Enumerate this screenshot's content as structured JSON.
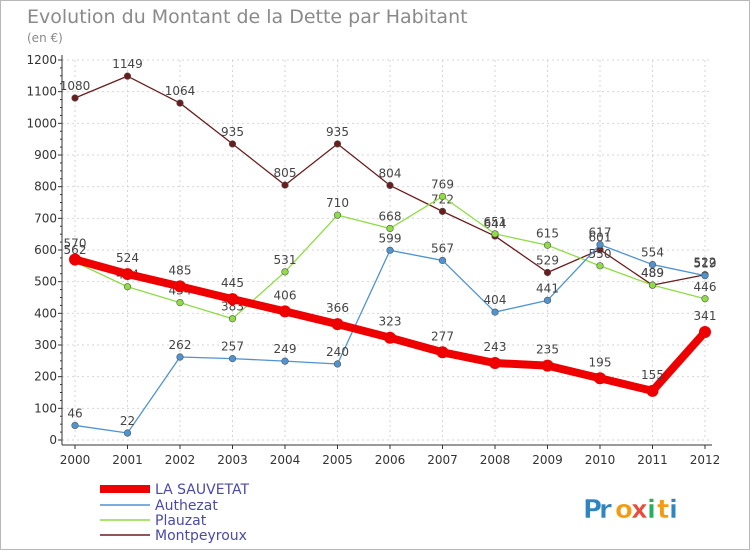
{
  "chart_data": {
    "type": "line",
    "title": "Evolution du Montant de la Dette par Habitant",
    "subtitle": "(en €)",
    "x": [
      "2000",
      "2001",
      "2002",
      "2003",
      "2004",
      "2005",
      "2006",
      "2007",
      "2008",
      "2009",
      "2010",
      "2011",
      "2012"
    ],
    "yticks": [
      0,
      100,
      200,
      300,
      400,
      500,
      600,
      700,
      800,
      900,
      1000,
      1100,
      1200
    ],
    "ylim": [
      0,
      1200
    ],
    "grid": true,
    "legend_position": "bottom-left",
    "series": [
      {
        "name": "Montpeyroux",
        "color": "#6b1d1d",
        "values": [
          1080,
          1149,
          1064,
          935,
          805,
          935,
          804,
          722,
          644,
          529,
          601,
          489,
          522
        ]
      },
      {
        "name": "Plauzat",
        "color": "#8fdc46",
        "values": [
          562,
          484,
          434,
          383,
          531,
          710,
          668,
          769,
          651,
          615,
          550,
          489,
          446
        ]
      },
      {
        "name": "Authezat",
        "color": "#4f93d1",
        "values": [
          46,
          22,
          262,
          257,
          249,
          240,
          599,
          567,
          404,
          441,
          617,
          554,
          519
        ]
      },
      {
        "name": "LA SAUVETAT",
        "color": "#ee0000",
        "values": [
          570,
          524,
          485,
          445,
          406,
          366,
          323,
          277,
          243,
          235,
          195,
          155,
          341
        ]
      }
    ],
    "legend": [
      "LA SAUVETAT",
      "Authezat",
      "Plauzat",
      "Montpeyroux"
    ]
  },
  "logo": {
    "text": "Proxiti",
    "letters": [
      "P",
      "r",
      "o",
      "x",
      "i",
      "t",
      "i"
    ],
    "colors": [
      "#2e86c1",
      "#2e86c1",
      "#f39c12",
      "#e74c3c",
      "#27ae60",
      "#f39c12",
      "#2e86c1"
    ]
  }
}
